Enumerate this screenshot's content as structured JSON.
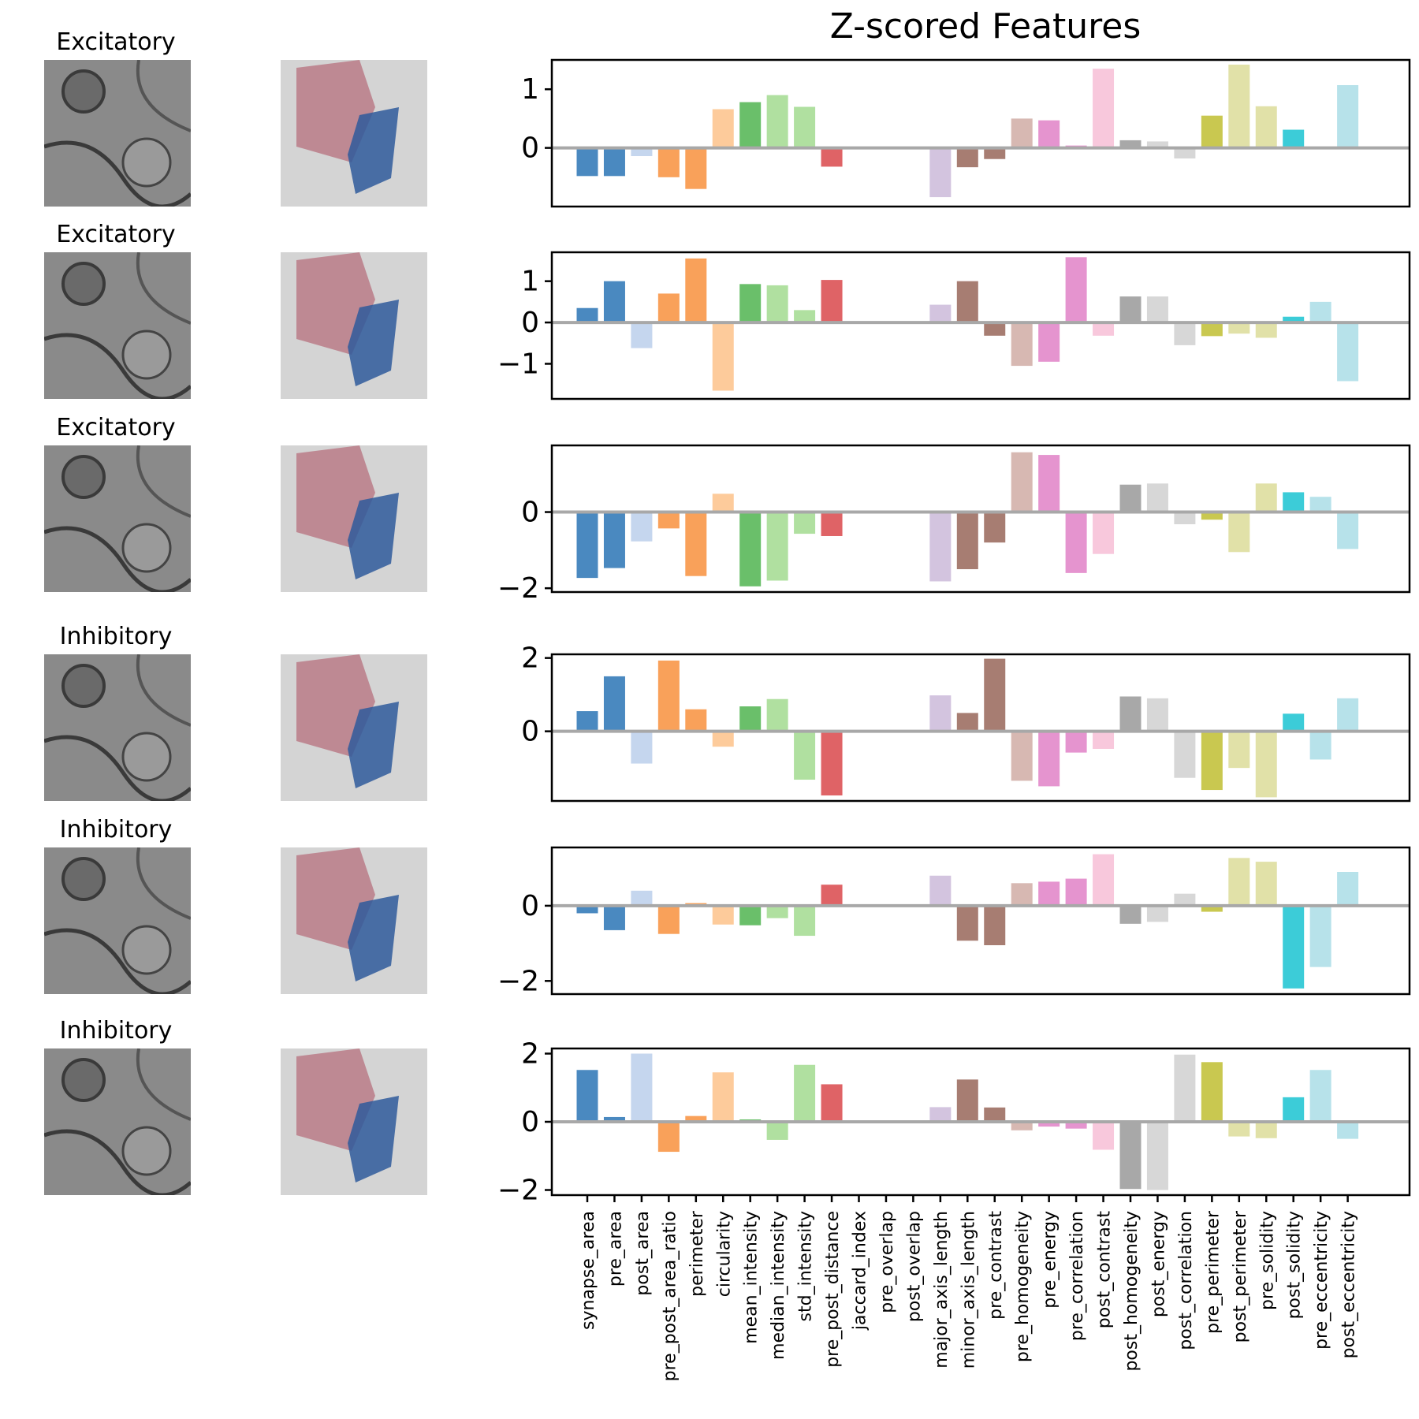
{
  "figure": {
    "title": "Z-scored Features"
  },
  "rows": [
    {
      "label": "Excitatory"
    },
    {
      "label": "Excitatory"
    },
    {
      "label": "Excitatory"
    },
    {
      "label": "Inhibitory"
    },
    {
      "label": "Inhibitory"
    },
    {
      "label": "Inhibitory"
    }
  ],
  "colors": {
    "pre_mask": "#b56a78",
    "post_mask": "#2f5b9b",
    "axis": "#000000",
    "zero_line": "#a8a8a8"
  },
  "chart_data": {
    "type": "bar",
    "title": "Z-scored Features",
    "categories": [
      "synapse_area",
      "pre_area",
      "post_area",
      "pre_post_area_ratio",
      "perimeter",
      "circularity",
      "mean_intensity",
      "median_intensity",
      "std_intensity",
      "pre_post_distance",
      "jaccard_index",
      "pre_overlap",
      "post_overlap",
      "major_axis_length",
      "minor_axis_length",
      "pre_contrast",
      "pre_homogeneity",
      "pre_energy",
      "pre_correlation",
      "post_contrast",
      "post_homogeneity",
      "post_energy",
      "post_correlation",
      "pre_perimeter",
      "post_perimeter",
      "pre_solidity",
      "post_solidity",
      "pre_eccentricity",
      "post_eccentricity"
    ],
    "bar_colors": [
      "#4a89c0",
      "#4a89c0",
      "#c5d6ee",
      "#f9a15a",
      "#f9a15a",
      "#fdcb9b",
      "#6abf6a",
      "#b0e0a0",
      "#b0e0a0",
      "#df6366",
      "#df6366",
      "#df6366",
      "#df6366",
      "#d3c4df",
      "#a77d72",
      "#a77d72",
      "#d7b8b2",
      "#e594cf",
      "#e594cf",
      "#f8c8dc",
      "#a8a8a8",
      "#d7d7d7",
      "#d7d7d7",
      "#c9c850",
      "#e1e1a8",
      "#e1e1a8",
      "#3cccd8",
      "#b7e2ea",
      "#b7e2ea"
    ],
    "series": [
      {
        "ylim": [
          -1.0,
          1.5
        ],
        "yticks": [
          0,
          1
        ],
        "values": [
          -0.48,
          -0.48,
          -0.14,
          -0.5,
          -0.7,
          0.66,
          0.78,
          0.9,
          0.7,
          -0.32,
          0,
          0,
          0,
          -0.84,
          -0.33,
          -0.19,
          0.5,
          0.47,
          0.04,
          1.35,
          0.13,
          0.11,
          -0.18,
          0.55,
          1.42,
          0.71,
          0.31,
          0,
          1.07
        ]
      },
      {
        "ylim": [
          -1.85,
          1.7
        ],
        "yticks": [
          -1,
          0,
          1
        ],
        "values": [
          0.35,
          1.0,
          -0.62,
          0.7,
          1.55,
          -1.65,
          0.93,
          0.9,
          0.3,
          1.03,
          0,
          0,
          0,
          0.43,
          1.0,
          -0.32,
          -1.05,
          -0.95,
          1.58,
          -0.32,
          0.63,
          0.63,
          -0.55,
          -0.33,
          -0.27,
          -0.37,
          0.14,
          0.5,
          -1.42
        ]
      },
      {
        "ylim": [
          -2.1,
          1.75
        ],
        "yticks": [
          -2,
          0
        ],
        "values": [
          -1.73,
          -1.47,
          -0.77,
          -0.43,
          -1.68,
          0.48,
          -1.95,
          -1.8,
          -0.57,
          -0.63,
          0,
          0,
          0,
          -1.82,
          -1.5,
          -0.8,
          1.57,
          1.5,
          -1.6,
          -1.1,
          0.72,
          0.75,
          -0.32,
          -0.2,
          -1.05,
          0.75,
          0.52,
          0.4,
          -0.97
        ]
      },
      {
        "ylim": [
          -1.9,
          2.1
        ],
        "yticks": [
          0,
          2
        ],
        "values": [
          0.55,
          1.5,
          -0.88,
          1.93,
          0.6,
          -0.42,
          0.68,
          0.88,
          -1.32,
          -1.75,
          0,
          0,
          0,
          0.98,
          0.5,
          1.98,
          -1.35,
          -1.5,
          -0.58,
          -0.48,
          0.95,
          0.9,
          -1.27,
          -1.6,
          -1.0,
          -1.8,
          0.48,
          -0.77,
          0.9
        ]
      },
      {
        "ylim": [
          -2.35,
          1.55
        ],
        "yticks": [
          -2,
          0
        ],
        "values": [
          -0.2,
          -0.65,
          0.4,
          -0.75,
          0.07,
          -0.5,
          -0.52,
          -0.33,
          -0.8,
          0.56,
          0,
          0,
          0,
          0.8,
          -0.93,
          -1.05,
          0.6,
          0.64,
          0.72,
          1.37,
          -0.48,
          -0.43,
          0.32,
          -0.16,
          1.27,
          1.17,
          -2.2,
          -1.63,
          0.9
        ]
      },
      {
        "ylim": [
          -2.15,
          2.15
        ],
        "yticks": [
          -2,
          0,
          2
        ],
        "values": [
          1.52,
          0.14,
          2.0,
          -0.88,
          0.17,
          1.45,
          0.07,
          -0.53,
          1.67,
          1.1,
          0,
          0,
          0,
          0.43,
          1.24,
          0.42,
          -0.25,
          -0.14,
          -0.2,
          -0.82,
          -1.97,
          -2.0,
          1.97,
          1.75,
          -0.43,
          -0.48,
          0.72,
          1.52,
          -0.5
        ]
      }
    ]
  }
}
